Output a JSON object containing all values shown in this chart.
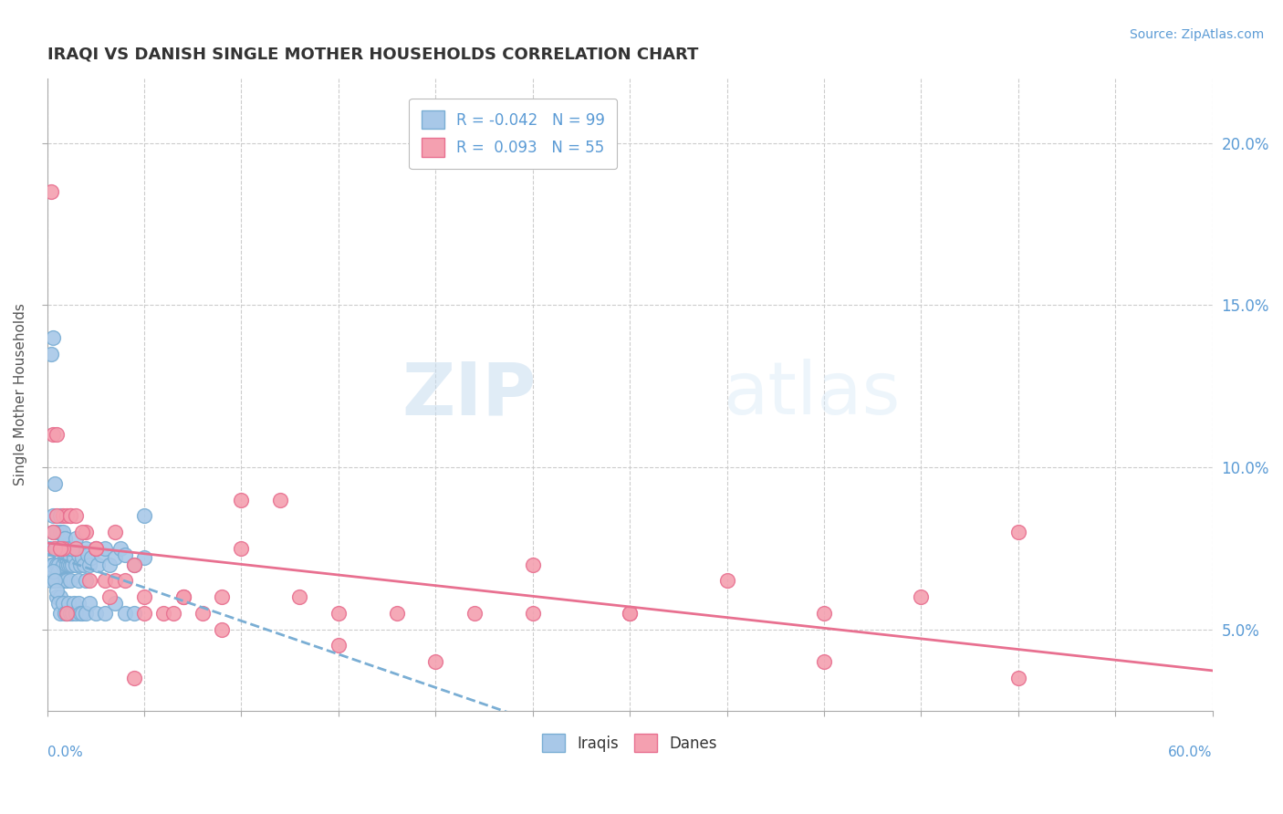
{
  "title": "IRAQI VS DANISH SINGLE MOTHER HOUSEHOLDS CORRELATION CHART",
  "source": "Source: ZipAtlas.com",
  "ylabel": "Single Mother Households",
  "yticks": [
    5.0,
    10.0,
    15.0,
    20.0
  ],
  "xlim": [
    0.0,
    60.0
  ],
  "ylim": [
    2.5,
    22.0
  ],
  "legend_r1": "R = -0.042",
  "legend_n1": "N = 99",
  "legend_r2": "R =  0.093",
  "legend_n2": "N = 55",
  "iraqis_color": "#a8c8e8",
  "danes_color": "#f4a0b0",
  "iraqis_edge": "#7aaed4",
  "danes_edge": "#e87090",
  "trend_iraqis_color": "#7aaed4",
  "trend_danes_color": "#e87090",
  "watermark_zip": "ZIP",
  "watermark_atlas": "atlas",
  "iraqis_x": [
    0.1,
    0.2,
    0.2,
    0.3,
    0.3,
    0.3,
    0.4,
    0.4,
    0.4,
    0.5,
    0.5,
    0.5,
    0.5,
    0.5,
    0.6,
    0.6,
    0.6,
    0.6,
    0.7,
    0.7,
    0.7,
    0.7,
    0.7,
    0.8,
    0.8,
    0.8,
    0.8,
    0.9,
    0.9,
    0.9,
    0.9,
    1.0,
    1.0,
    1.0,
    1.0,
    1.1,
    1.1,
    1.1,
    1.2,
    1.2,
    1.2,
    1.3,
    1.3,
    1.4,
    1.4,
    1.5,
    1.5,
    1.6,
    1.6,
    1.7,
    1.8,
    1.9,
    2.0,
    2.0,
    2.1,
    2.2,
    2.3,
    2.5,
    2.6,
    2.8,
    3.0,
    3.2,
    3.5,
    3.8,
    4.0,
    4.5,
    5.0,
    0.2,
    0.3,
    0.4,
    0.5,
    0.6,
    0.7,
    0.8,
    0.9,
    1.0,
    1.1,
    1.2,
    1.3,
    1.4,
    1.5,
    1.6,
    1.7,
    1.8,
    2.0,
    2.2,
    2.5,
    3.0,
    3.5,
    4.0,
    4.5,
    5.0,
    0.3,
    0.5,
    0.7,
    0.9,
    1.1,
    1.3,
    1.5
  ],
  "iraqis_y": [
    7.5,
    13.5,
    7.0,
    14.0,
    8.5,
    7.0,
    9.5,
    7.5,
    6.5,
    7.0,
    8.0,
    7.5,
    6.5,
    6.0,
    7.0,
    7.5,
    6.8,
    6.5,
    8.0,
    8.5,
    7.5,
    6.5,
    6.0,
    7.0,
    8.0,
    7.5,
    6.5,
    7.2,
    7.8,
    7.3,
    6.5,
    7.0,
    7.5,
    7.2,
    6.5,
    7.0,
    7.5,
    7.3,
    7.0,
    7.2,
    6.5,
    7.5,
    7.0,
    7.3,
    7.2,
    7.5,
    7.0,
    7.3,
    6.5,
    7.0,
    7.2,
    7.0,
    7.5,
    6.5,
    7.3,
    7.0,
    7.2,
    7.5,
    7.0,
    7.3,
    7.5,
    7.0,
    7.2,
    7.5,
    7.3,
    7.0,
    7.2,
    6.5,
    6.8,
    6.5,
    6.2,
    5.8,
    5.5,
    5.8,
    5.5,
    5.5,
    5.8,
    5.5,
    5.5,
    5.8,
    5.5,
    5.8,
    5.5,
    5.5,
    5.5,
    5.8,
    5.5,
    5.5,
    5.8,
    5.5,
    5.5,
    8.5,
    8.0,
    7.5,
    7.5,
    7.8,
    7.5,
    7.5,
    7.8
  ],
  "danes_x": [
    0.2,
    0.3,
    0.5,
    0.8,
    1.0,
    1.2,
    1.5,
    2.0,
    2.5,
    3.0,
    3.5,
    4.0,
    4.5,
    5.0,
    6.0,
    7.0,
    8.0,
    9.0,
    10.0,
    12.0,
    15.0,
    20.0,
    25.0,
    30.0,
    35.0,
    40.0,
    45.0,
    50.0,
    0.3,
    0.5,
    0.8,
    1.2,
    1.8,
    2.5,
    3.5,
    5.0,
    7.0,
    10.0,
    15.0,
    22.0,
    30.0,
    40.0,
    50.0,
    0.4,
    0.7,
    1.0,
    1.5,
    2.2,
    3.2,
    4.5,
    6.5,
    9.0,
    13.0,
    18.0,
    25.0
  ],
  "danes_y": [
    18.5,
    11.0,
    11.0,
    8.5,
    8.5,
    8.5,
    7.5,
    8.0,
    7.5,
    6.5,
    6.5,
    6.5,
    7.0,
    6.0,
    5.5,
    6.0,
    5.5,
    6.0,
    7.5,
    9.0,
    5.5,
    4.0,
    5.5,
    5.5,
    6.5,
    5.5,
    6.0,
    3.5,
    8.0,
    8.5,
    7.5,
    8.5,
    8.0,
    7.5,
    8.0,
    5.5,
    6.0,
    9.0,
    4.5,
    5.5,
    5.5,
    4.0,
    8.0,
    7.5,
    7.5,
    5.5,
    8.5,
    6.5,
    6.0,
    3.5,
    5.5,
    5.0,
    6.0,
    5.5,
    7.0
  ]
}
